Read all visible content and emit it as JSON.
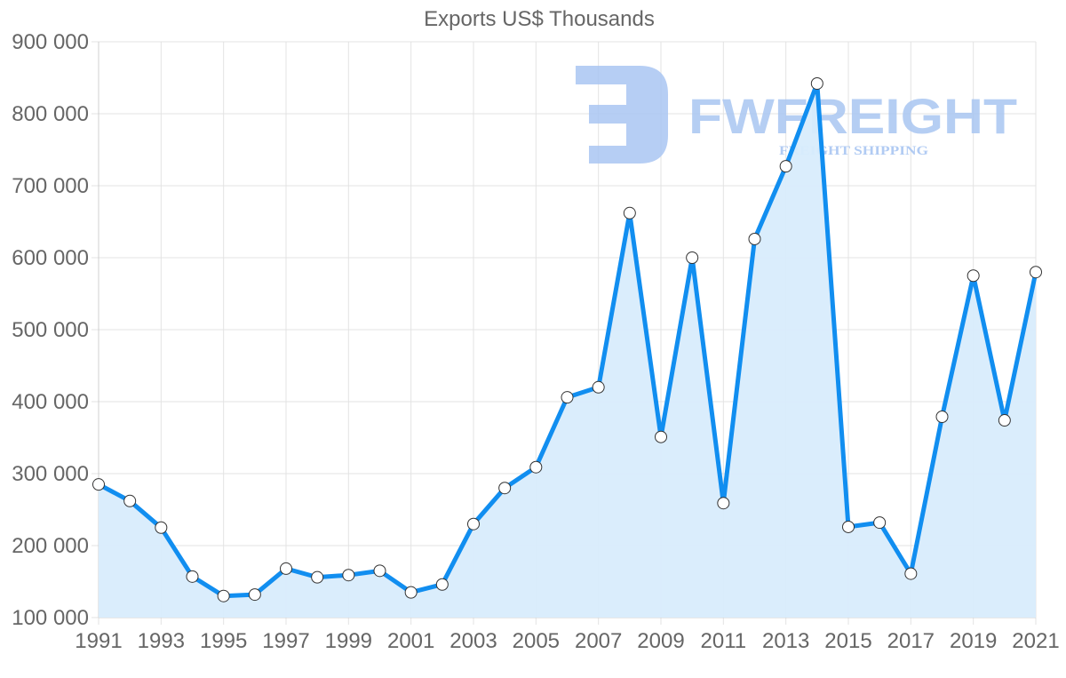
{
  "chart_data": {
    "type": "line",
    "title": "Exports US$ Thousands",
    "xlabel": "",
    "ylabel": "",
    "fill": true,
    "grid": true,
    "legend": "none",
    "ylim": [
      100000,
      900000
    ],
    "y_ticks": [
      "100 000",
      "200 000",
      "300 000",
      "400 000",
      "500 000",
      "600 000",
      "700 000",
      "800 000",
      "900 000"
    ],
    "x_tick_labels": [
      "1991",
      "1993",
      "1995",
      "1997",
      "1999",
      "2001",
      "2003",
      "2005",
      "2007",
      "2009",
      "2011",
      "2013",
      "2015",
      "2017",
      "2019",
      "2021"
    ],
    "categories": [
      1991,
      1992,
      1993,
      1994,
      1995,
      1996,
      1997,
      1998,
      1999,
      2000,
      2001,
      2002,
      2003,
      2004,
      2005,
      2006,
      2007,
      2008,
      2009,
      2010,
      2011,
      2012,
      2013,
      2014,
      2015,
      2016,
      2017,
      2018,
      2019,
      2020,
      2021
    ],
    "series": [
      {
        "name": "Exports US$ Thousands",
        "color": "#118ef0",
        "fill_color": "#d8ecfc",
        "values": [
          285000,
          262000,
          225000,
          157000,
          130000,
          132000,
          168000,
          156000,
          159000,
          165000,
          135000,
          146000,
          230000,
          280000,
          309000,
          406000,
          420000,
          662000,
          351000,
          600000,
          259000,
          626000,
          727000,
          842000,
          226000,
          232000,
          161000,
          379000,
          575000,
          374000,
          580000
        ]
      }
    ]
  },
  "watermark": {
    "brand": "FWFREIGHT",
    "tagline": "FREIGHT SHIPPING",
    "color": "#a9c6f2"
  }
}
